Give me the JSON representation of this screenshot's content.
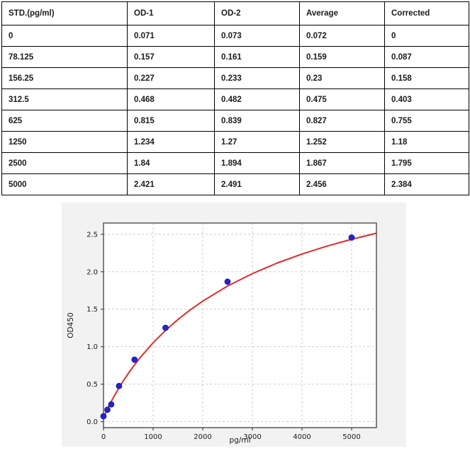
{
  "table": {
    "columns": [
      "STD.(pg/ml)",
      "OD-1",
      "OD-2",
      "Average",
      "Corrected"
    ],
    "rows": [
      [
        "0",
        "0.071",
        "0.073",
        "0.072",
        "0"
      ],
      [
        "78.125",
        "0.157",
        "0.161",
        "0.159",
        "0.087"
      ],
      [
        "156.25",
        "0.227",
        "0.233",
        "0.23",
        "0.158"
      ],
      [
        "312.5",
        "0.468",
        "0.482",
        "0.475",
        "0.403"
      ],
      [
        "625",
        "0.815",
        "0.839",
        "0.827",
        "0.755"
      ],
      [
        "1250",
        "1.234",
        "1.27",
        "1.252",
        "1.18"
      ],
      [
        "2500",
        "1.84",
        "1.894",
        "1.867",
        "1.795"
      ],
      [
        "5000",
        "2.421",
        "2.491",
        "2.456",
        "2.384"
      ]
    ]
  },
  "chart_data": {
    "type": "scatter",
    "title": "",
    "xlabel": "pg/ml",
    "ylabel": "OD450",
    "xlim": [
      0,
      5500
    ],
    "ylim": [
      -0.08,
      2.65
    ],
    "xticks": [
      0,
      1000,
      2000,
      3000,
      4000,
      5000
    ],
    "xticklabels": [
      "0",
      "1000",
      "2000",
      "3000",
      "4000",
      "5000"
    ],
    "yticks": [
      0.0,
      0.5,
      1.0,
      1.5,
      2.0,
      2.5
    ],
    "yticklabels": [
      "0.0",
      "0.5",
      "1.0",
      "1.5",
      "2.0",
      "2.5"
    ],
    "grid": true,
    "grid_style": "dashed",
    "legend": "none",
    "series": [
      {
        "name": "standard-points",
        "type": "scatter",
        "color": "#2424cb",
        "x": [
          0,
          78.125,
          156.25,
          312.5,
          625,
          1250,
          2500,
          5000
        ],
        "y": [
          0.072,
          0.159,
          0.23,
          0.475,
          0.827,
          1.252,
          1.867,
          2.456
        ]
      },
      {
        "name": "fit-curve",
        "type": "line",
        "color": "#e12a2a",
        "x": [
          0,
          25,
          50,
          100,
          150,
          200,
          300,
          400,
          500,
          625,
          750,
          1000,
          1250,
          1500,
          1750,
          2000,
          2500,
          3000,
          3500,
          4000,
          4500,
          5000,
          5500
        ],
        "y": [
          0.05,
          0.09,
          0.127,
          0.196,
          0.261,
          0.323,
          0.438,
          0.545,
          0.644,
          0.758,
          0.864,
          1.053,
          1.217,
          1.363,
          1.492,
          1.608,
          1.809,
          1.975,
          2.116,
          2.236,
          2.341,
          2.433,
          2.514
        ]
      }
    ],
    "colors": {
      "figure_bg": "#f2f2f2",
      "plot_bg": "#ffffff",
      "grid": "#c9c9c9",
      "axis": "#3f3f3f",
      "tick_text": "#1a1a1a",
      "point_edge": "#1515a0"
    }
  }
}
